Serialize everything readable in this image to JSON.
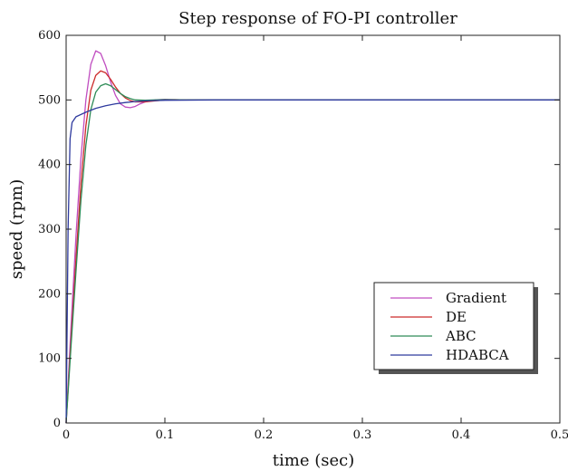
{
  "chart_data": {
    "type": "line",
    "title": "Step response of FO-PI controller",
    "xlabel": "time (sec)",
    "ylabel": "speed (rpm)",
    "xlim": [
      0,
      0.5
    ],
    "ylim": [
      0,
      600
    ],
    "xticks": [
      0,
      0.1,
      0.2,
      0.3,
      0.4,
      0.5
    ],
    "xtick_labels": [
      "0",
      "0.1",
      "0.2",
      "0.3",
      "0.4",
      "0.5"
    ],
    "yticks": [
      0,
      100,
      200,
      300,
      400,
      500,
      600
    ],
    "ytick_labels": [
      "0",
      "100",
      "200",
      "300",
      "400",
      "500",
      "600"
    ],
    "grid": false,
    "legend_position": "lower-right",
    "series": [
      {
        "name": "Gradient",
        "color": "#c04dc0",
        "points": [
          [
            0,
            0
          ],
          [
            0.005,
            150
          ],
          [
            0.01,
            290
          ],
          [
            0.015,
            410
          ],
          [
            0.02,
            500
          ],
          [
            0.025,
            555
          ],
          [
            0.03,
            576
          ],
          [
            0.035,
            572
          ],
          [
            0.04,
            553
          ],
          [
            0.045,
            528
          ],
          [
            0.05,
            507
          ],
          [
            0.055,
            494
          ],
          [
            0.06,
            489
          ],
          [
            0.065,
            488
          ],
          [
            0.07,
            490
          ],
          [
            0.075,
            494
          ],
          [
            0.08,
            497
          ],
          [
            0.09,
            500
          ],
          [
            0.1,
            501
          ],
          [
            0.11,
            500.5
          ],
          [
            0.12,
            500
          ],
          [
            0.2,
            500
          ],
          [
            0.3,
            500
          ],
          [
            0.4,
            500
          ],
          [
            0.5,
            500
          ]
        ]
      },
      {
        "name": "DE",
        "color": "#cc2b2b",
        "points": [
          [
            0,
            0
          ],
          [
            0.005,
            130
          ],
          [
            0.01,
            255
          ],
          [
            0.015,
            370
          ],
          [
            0.02,
            460
          ],
          [
            0.025,
            515
          ],
          [
            0.03,
            538
          ],
          [
            0.035,
            545
          ],
          [
            0.04,
            542
          ],
          [
            0.045,
            532
          ],
          [
            0.05,
            520
          ],
          [
            0.055,
            510
          ],
          [
            0.06,
            503
          ],
          [
            0.065,
            499
          ],
          [
            0.07,
            497
          ],
          [
            0.08,
            497
          ],
          [
            0.09,
            498.5
          ],
          [
            0.1,
            500
          ],
          [
            0.11,
            500.5
          ],
          [
            0.12,
            500
          ],
          [
            0.2,
            500
          ],
          [
            0.3,
            500
          ],
          [
            0.4,
            500
          ],
          [
            0.5,
            500
          ]
        ]
      },
      {
        "name": "ABC",
        "color": "#2e8b57",
        "points": [
          [
            0,
            0
          ],
          [
            0.005,
            120
          ],
          [
            0.01,
            235
          ],
          [
            0.015,
            345
          ],
          [
            0.02,
            430
          ],
          [
            0.025,
            485
          ],
          [
            0.03,
            512
          ],
          [
            0.035,
            522
          ],
          [
            0.04,
            525
          ],
          [
            0.045,
            522
          ],
          [
            0.05,
            516
          ],
          [
            0.055,
            510
          ],
          [
            0.06,
            505
          ],
          [
            0.065,
            502
          ],
          [
            0.07,
            500
          ],
          [
            0.08,
            499.5
          ],
          [
            0.09,
            500
          ],
          [
            0.1,
            500.5
          ],
          [
            0.12,
            500
          ],
          [
            0.2,
            500
          ],
          [
            0.3,
            500
          ],
          [
            0.4,
            500
          ],
          [
            0.5,
            500
          ]
        ]
      },
      {
        "name": "HDABCA",
        "color": "#2e3a9e",
        "points": [
          [
            0,
            0
          ],
          [
            0.002,
            300
          ],
          [
            0.004,
            440
          ],
          [
            0.006,
            465
          ],
          [
            0.01,
            474
          ],
          [
            0.02,
            481
          ],
          [
            0.03,
            487
          ],
          [
            0.04,
            491
          ],
          [
            0.05,
            494
          ],
          [
            0.06,
            496
          ],
          [
            0.07,
            497.5
          ],
          [
            0.08,
            498.5
          ],
          [
            0.1,
            499.5
          ],
          [
            0.15,
            500
          ],
          [
            0.2,
            500
          ],
          [
            0.3,
            500
          ],
          [
            0.4,
            500
          ],
          [
            0.5,
            500
          ]
        ]
      }
    ]
  }
}
